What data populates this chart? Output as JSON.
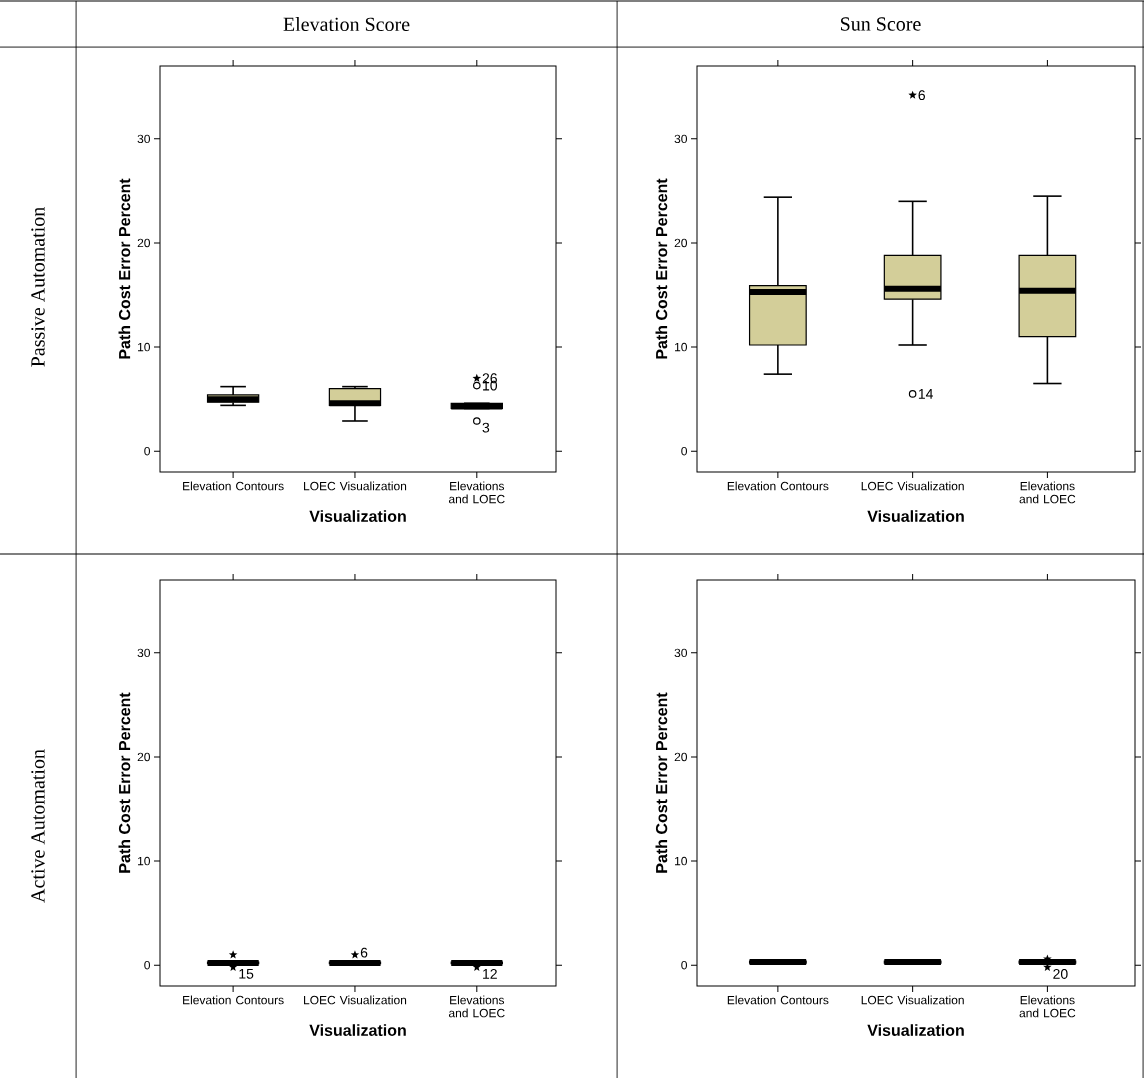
{
  "chart_data": [
    {
      "type": "box",
      "title": "Elevation Score",
      "xlabel": "Visualization",
      "ylabel": "Path Cost Error Percent",
      "categories": [
        "Elevation Contours",
        "LOEC Visualization",
        "Elevations and LOEC"
      ],
      "ylim": [
        -2,
        37
      ],
      "yticks": [
        0,
        10,
        20,
        30
      ],
      "annotations": [
        "Passive Automation",
        {
          "text": "26",
          "x": "Elevations and LOEC",
          "y": 7.0
        },
        {
          "text": "10",
          "x": "Elevations and LOEC",
          "y": 6.3
        },
        {
          "text": "3",
          "x": "Elevations and LOEC",
          "y": 2.9
        }
      ],
      "series": [
        {
          "color": "#d3ce99",
          "boxes": [
            {
              "low": 4.4,
              "q1": 4.7,
              "median": 5.0,
              "q3": 5.4,
              "high": 6.2
            },
            {
              "low": 2.9,
              "q1": 4.4,
              "median": 4.6,
              "q3": 6.0,
              "high": 6.2
            },
            {
              "low": 4.1,
              "q1": 4.1,
              "median": 4.3,
              "q3": 4.6,
              "high": 4.6
            }
          ]
        },
        {
          "type": "scatter",
          "marker": "circle",
          "color": "#000000",
          "x": [
            "Elevations and LOEC",
            "Elevations and LOEC"
          ],
          "values": [
            6.3,
            2.9
          ]
        },
        {
          "type": "scatter",
          "marker": "star",
          "color": "#000000",
          "x": [
            "Elevations and LOEC"
          ],
          "values": [
            7.0
          ]
        }
      ]
    },
    {
      "type": "box",
      "title": "Sun Score",
      "xlabel": "Visualization",
      "ylabel": "Path Cost Error Percent",
      "categories": [
        "Elevation Contours",
        "LOEC Visualization",
        "Elevations and LOEC"
      ],
      "ylim": [
        -2,
        37
      ],
      "yticks": [
        0,
        10,
        20,
        30
      ],
      "annotations": [
        {
          "text": "6",
          "x": "LOEC Visualization",
          "y": 34.2
        },
        {
          "text": "14",
          "x": "LOEC Visualization",
          "y": 5.5
        }
      ],
      "series": [
        {
          "color": "#d3ce99",
          "boxes": [
            {
              "low": 7.4,
              "q1": 10.2,
              "median": 15.3,
              "q3": 15.9,
              "high": 24.4
            },
            {
              "low": 10.2,
              "q1": 14.6,
              "median": 15.6,
              "q3": 18.8,
              "high": 24.0
            },
            {
              "low": 6.5,
              "q1": 11.0,
              "median": 15.4,
              "q3": 18.8,
              "high": 24.5
            }
          ]
        },
        {
          "type": "scatter",
          "marker": "circle",
          "color": "#000000",
          "x": [
            "LOEC Visualization"
          ],
          "values": [
            5.5
          ]
        },
        {
          "type": "scatter",
          "marker": "star",
          "color": "#000000",
          "x": [
            "LOEC Visualization"
          ],
          "values": [
            34.2
          ]
        }
      ]
    },
    {
      "type": "box",
      "xlabel": "Visualization",
      "ylabel": "Path Cost Error Percent",
      "categories": [
        "Elevation Contours",
        "LOEC Visualization",
        "Elevations and LOEC"
      ],
      "ylim": [
        -2,
        37
      ],
      "yticks": [
        0,
        10,
        20,
        30
      ],
      "annotations": [
        "Active Automation",
        {
          "text": "15",
          "x": "Elevation Contours",
          "y": -0.2
        },
        {
          "text": "6",
          "x": "LOEC Visualization",
          "y": 1.0
        },
        {
          "text": "12",
          "x": "Elevations and LOEC",
          "y": -0.2
        }
      ],
      "series": [
        {
          "color": "#d3ce99",
          "boxes": [
            {
              "low": 0.1,
              "q1": 0.15,
              "median": 0.2,
              "q3": 0.3,
              "high": 0.4
            },
            {
              "low": 0.1,
              "q1": 0.15,
              "median": 0.2,
              "q3": 0.3,
              "high": 0.35
            },
            {
              "low": 0.1,
              "q1": 0.15,
              "median": 0.2,
              "q3": 0.3,
              "high": 0.35
            }
          ]
        },
        {
          "type": "scatter",
          "marker": "star",
          "color": "#000000",
          "x": [
            "Elevation Contours",
            "Elevation Contours",
            "LOEC Visualization",
            "Elevations and LOEC"
          ],
          "values": [
            1.0,
            -0.2,
            1.0,
            -0.2
          ]
        }
      ]
    },
    {
      "type": "box",
      "xlabel": "Visualization",
      "ylabel": "Path Cost Error Percent",
      "categories": [
        "Elevation Contours",
        "LOEC Visualization",
        "Elevations and LOEC"
      ],
      "ylim": [
        -2,
        37
      ],
      "yticks": [
        0,
        10,
        20,
        30
      ],
      "annotations": [
        {
          "text": "20",
          "x": "Elevations and LOEC",
          "y": -0.2
        }
      ],
      "series": [
        {
          "color": "#d3ce99",
          "boxes": [
            {
              "low": 0.1,
              "q1": 0.2,
              "median": 0.3,
              "q3": 0.4,
              "high": 0.5
            },
            {
              "low": 0.1,
              "q1": 0.2,
              "median": 0.3,
              "q3": 0.4,
              "high": 0.5
            },
            {
              "low": 0.1,
              "q1": 0.2,
              "median": 0.3,
              "q3": 0.4,
              "high": 0.5
            }
          ]
        },
        {
          "type": "scatter",
          "marker": "star",
          "color": "#000000",
          "x": [
            "Elevations and LOEC",
            "Elevations and LOEC"
          ],
          "values": [
            0.6,
            -0.2
          ]
        }
      ]
    }
  ]
}
